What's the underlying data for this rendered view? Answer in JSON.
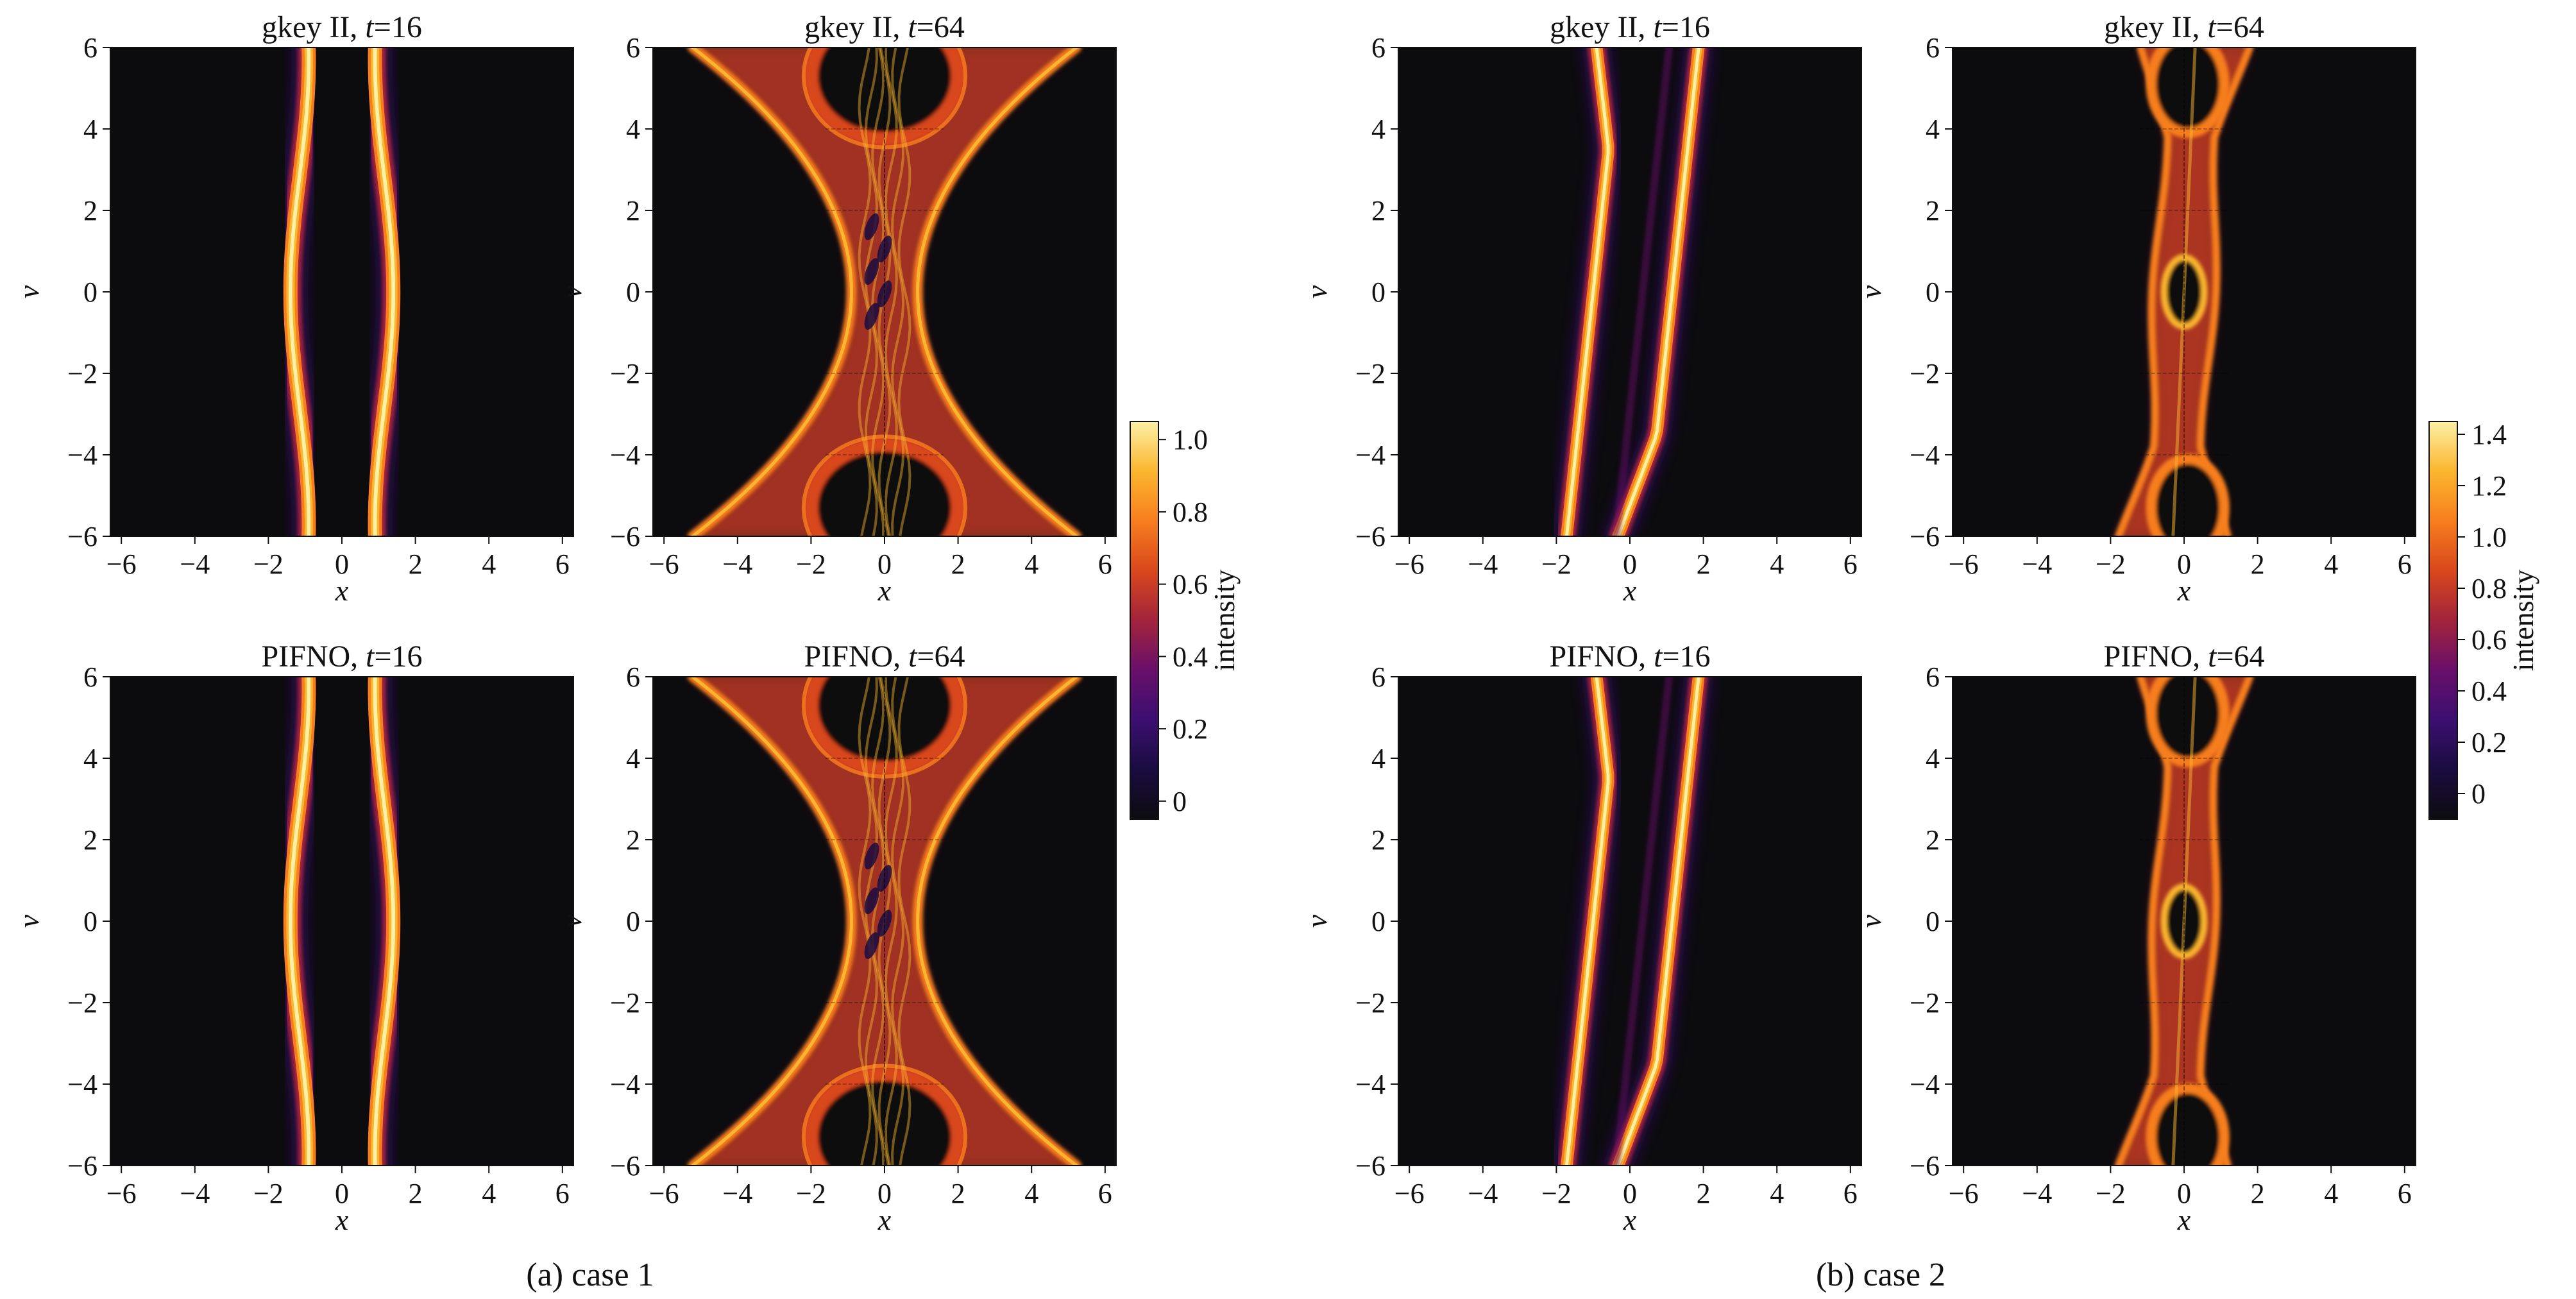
{
  "captions": [
    "(a) case 1",
    "(b) case 2"
  ],
  "colorbars": [
    {
      "label": "intensity",
      "ticks": [
        0,
        0.2,
        0.4,
        0.6,
        0.8,
        1.0
      ],
      "tick_labels": [
        "0",
        "0.2",
        "0.4",
        "0.6",
        "0.8",
        "1.0"
      ],
      "range": [
        -0.05,
        1.05
      ]
    },
    {
      "label": "intensity",
      "ticks": [
        0,
        0.2,
        0.4,
        0.6,
        0.8,
        1.0,
        1.2,
        1.4
      ],
      "tick_labels": [
        "0",
        "0.2",
        "0.4",
        "0.6",
        "0.8",
        "1.0",
        "1.2",
        "1.4"
      ],
      "range": [
        -0.1,
        1.45
      ]
    }
  ],
  "colormap": [
    "#0c0c0f",
    "#1a0c40",
    "#3b0f70",
    "#6a0f6b",
    "#a2243c",
    "#d9471d",
    "#f77e1e",
    "#fbb62f",
    "#fcf0a6"
  ],
  "chart_data": [
    {
      "type": "heatmap",
      "title_source": "gkey II",
      "t": "16",
      "case": 1,
      "pattern": "two-filaments",
      "xlabel": "x",
      "ylabel": "v",
      "xlim": [
        -6.3,
        6.3
      ],
      "ylim": [
        -6,
        6
      ],
      "xticks": [
        -6,
        -4,
        -2,
        0,
        2,
        4,
        6
      ],
      "yticks": [
        -6,
        -4,
        -2,
        0,
        2,
        4,
        6
      ]
    },
    {
      "type": "heatmap",
      "title_source": "gkey II",
      "t": "64",
      "case": 1,
      "pattern": "hourglass-with-vortices",
      "xlabel": "x",
      "ylabel": "v",
      "xlim": [
        -6.3,
        6.3
      ],
      "ylim": [
        -6,
        6
      ],
      "xticks": [
        -6,
        -4,
        -2,
        0,
        2,
        4,
        6
      ],
      "yticks": [
        -6,
        -4,
        -2,
        0,
        2,
        4,
        6
      ]
    },
    {
      "type": "heatmap",
      "title_source": "PIFNO",
      "t": "16",
      "case": 1,
      "pattern": "two-filaments",
      "xlabel": "x",
      "ylabel": "v",
      "xlim": [
        -6.3,
        6.3
      ],
      "ylim": [
        -6,
        6
      ],
      "xticks": [
        -6,
        -4,
        -2,
        0,
        2,
        4,
        6
      ],
      "yticks": [
        -6,
        -4,
        -2,
        0,
        2,
        4,
        6
      ]
    },
    {
      "type": "heatmap",
      "title_source": "PIFNO",
      "t": "64",
      "case": 1,
      "pattern": "hourglass-with-vortices",
      "xlabel": "x",
      "ylabel": "v",
      "xlim": [
        -6.3,
        6.3
      ],
      "ylim": [
        -6,
        6
      ],
      "xticks": [
        -6,
        -4,
        -2,
        0,
        2,
        4,
        6
      ],
      "yticks": [
        -6,
        -4,
        -2,
        0,
        2,
        4,
        6
      ]
    },
    {
      "type": "heatmap",
      "title_source": "gkey II",
      "t": "16",
      "case": 2,
      "pattern": "tilted-filaments",
      "xlabel": "x",
      "ylabel": "v",
      "xlim": [
        -6.3,
        6.3
      ],
      "ylim": [
        -6,
        6
      ],
      "xticks": [
        -6,
        -4,
        -2,
        0,
        2,
        4,
        6
      ],
      "yticks": [
        -6,
        -4,
        -2,
        0,
        2,
        4,
        6
      ]
    },
    {
      "type": "heatmap",
      "title_source": "gkey II",
      "t": "64",
      "case": 2,
      "pattern": "column-with-hole",
      "xlabel": "x",
      "ylabel": "v",
      "xlim": [
        -6.3,
        6.3
      ],
      "ylim": [
        -6,
        6
      ],
      "xticks": [
        -6,
        -4,
        -2,
        0,
        2,
        4,
        6
      ],
      "yticks": [
        -6,
        -4,
        -2,
        0,
        2,
        4,
        6
      ]
    },
    {
      "type": "heatmap",
      "title_source": "PIFNO",
      "t": "16",
      "case": 2,
      "pattern": "tilted-filaments",
      "xlabel": "x",
      "ylabel": "v",
      "xlim": [
        -6.3,
        6.3
      ],
      "ylim": [
        -6,
        6
      ],
      "xticks": [
        -6,
        -4,
        -2,
        0,
        2,
        4,
        6
      ],
      "yticks": [
        -6,
        -4,
        -2,
        0,
        2,
        4,
        6
      ]
    },
    {
      "type": "heatmap",
      "title_source": "PIFNO",
      "t": "64",
      "case": 2,
      "pattern": "column-with-hole",
      "xlabel": "x",
      "ylabel": "v",
      "xlim": [
        -6.3,
        6.3
      ],
      "ylim": [
        -6,
        6
      ],
      "xticks": [
        -6,
        -4,
        -2,
        0,
        2,
        4,
        6
      ],
      "yticks": [
        -6,
        -4,
        -2,
        0,
        2,
        4,
        6
      ]
    }
  ]
}
